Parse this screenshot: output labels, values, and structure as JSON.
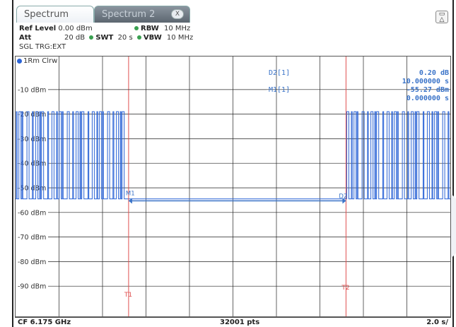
{
  "tabs": [
    {
      "label": "Spectrum",
      "active": true
    },
    {
      "label": "Spectrum 2",
      "active": false
    }
  ],
  "tab_close_glyph": "X",
  "params": {
    "ref_level_label": "Ref Level",
    "ref_level_value": "0.00 dBm",
    "att_label": "Att",
    "att_value": "20 dB",
    "swt_label": "SWT",
    "swt_value": "20 s",
    "rbw_label": "RBW",
    "rbw_value": "10 MHz",
    "vbw_label": "VBW",
    "vbw_value": "10 MHz",
    "trigger": "SGL TRG:EXT"
  },
  "trace_label": "1Rm Clrw",
  "y_axis": {
    "labels": [
      "-10 dBm",
      "-20 dBm",
      "-30 dBm",
      "-40 dBm",
      "-50 dBm",
      "-60 dBm",
      "-70 dBm",
      "-80 dBm",
      "-90 dBm"
    ],
    "top_db": 0,
    "bottom_db": -100
  },
  "markers": {
    "d2_label": "D2[1]",
    "d2_value": "0.20 dB",
    "d2_time": "10.000000 s",
    "m1_label": "M1[1]",
    "m1_value": "-55.27 dBm",
    "m1_time": "0.000000 s",
    "m1_tag": "M1",
    "d2_tag": "D2",
    "t1_label": "T1",
    "t2_label": "T2",
    "t1_pos_s": 5.2,
    "t2_pos_s": 15.2,
    "marker_level_db": -55.27
  },
  "trace": {
    "high_db": -19,
    "low_db": -54.5,
    "burst1": [
      0,
      5.2
    ],
    "burst2": [
      15.2,
      20
    ]
  },
  "status": {
    "cf": "CF 6.175 GHz",
    "pts": "32001 pts",
    "span": "2.0 s/"
  },
  "colors": {
    "trace": "#2a63d6",
    "grid": "#222222",
    "line_marker": "#e05050",
    "marker_text": "#3a73c8"
  }
}
